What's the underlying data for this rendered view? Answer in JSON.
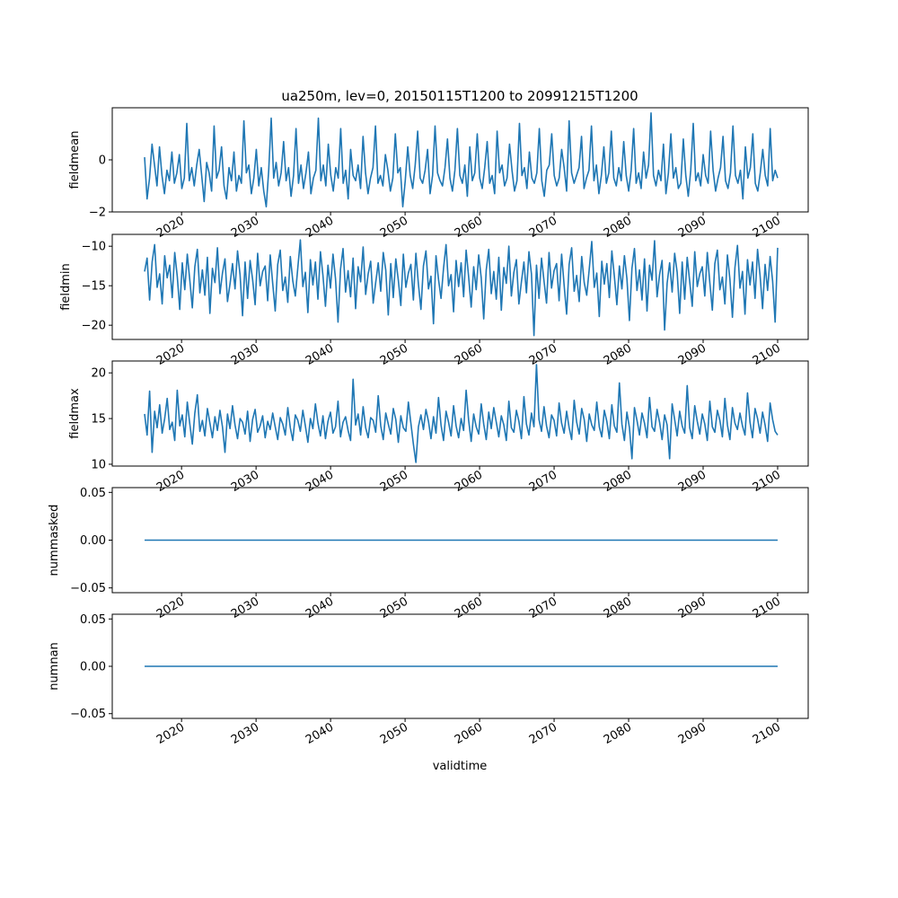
{
  "figure": {
    "title": "ua250m, lev=0, 20150115T1200 to 20991215T1200",
    "xlabel": "validtime"
  },
  "colors": {
    "line": "#1f77b4",
    "axes": "#000000",
    "background": "#ffffff"
  },
  "chart_data": [
    {
      "type": "line",
      "ylabel": "fieldmean",
      "xlim": [
        2010.7,
        2104.1
      ],
      "ylim": [
        -2.0,
        2.0
      ],
      "yticks": [
        -2,
        0
      ],
      "ytick_labels": [
        "−2",
        "0"
      ],
      "xticks": [
        2020,
        2030,
        2040,
        2050,
        2060,
        2070,
        2080,
        2090,
        2100
      ],
      "xtick_labels": [
        "2020",
        "2030",
        "2040",
        "2050",
        "2060",
        "2070",
        "2080",
        "2090",
        "2100"
      ],
      "series": [
        {
          "x_start": 2015.04,
          "x_end": 2100.0,
          "values": [
            0.1,
            -1.5,
            -0.7,
            0.6,
            -0.2,
            -1.0,
            0.5,
            -0.6,
            -1.3,
            -0.4,
            -0.8,
            0.3,
            -0.9,
            -0.5,
            0.2,
            -1.1,
            -0.7,
            1.4,
            -0.8,
            -0.3,
            -1.0,
            -0.2,
            0.4,
            -0.6,
            -1.6,
            -0.1,
            -0.5,
            -1.2,
            1.3,
            -0.7,
            -0.4,
            0.5,
            -1.0,
            -1.5,
            -0.3,
            -0.8,
            0.3,
            -1.2,
            -0.6,
            -0.9,
            1.5,
            -0.5,
            -0.2,
            -1.3,
            -0.7,
            0.4,
            -1.0,
            -0.3,
            -1.2,
            -1.8,
            -0.4,
            1.6,
            -0.7,
            -0.1,
            -1.0,
            -0.5,
            0.7,
            -0.8,
            -0.3,
            -1.4,
            -0.6,
            1.2,
            -0.9,
            -0.2,
            -1.1,
            -0.5,
            0.3,
            -1.3,
            -0.7,
            -0.4,
            1.6,
            -0.8,
            -0.2,
            -1.0,
            0.6,
            -0.6,
            -1.2,
            -0.3,
            -0.7,
            1.2,
            -0.9,
            -0.4,
            -1.5,
            0.4,
            -0.6,
            -0.8,
            -0.2,
            -1.1,
            0.9,
            -0.5,
            -1.3,
            -0.7,
            -0.3,
            1.3,
            -0.9,
            -0.6,
            -1.0,
            0.2,
            -0.4,
            -1.2,
            -0.7,
            1.0,
            -0.5,
            -0.3,
            -1.8,
            -0.8,
            0.5,
            -0.6,
            -1.1,
            -0.2,
            1.1,
            -0.7,
            -0.9,
            -0.4,
            0.4,
            -1.3,
            -0.6,
            1.3,
            -0.5,
            -0.8,
            -1.0,
            -0.3,
            0.8,
            -0.7,
            -1.2,
            -0.4,
            1.2,
            -0.6,
            -0.9,
            -0.2,
            -1.4,
            0.5,
            -0.8,
            -0.5,
            1.0,
            -0.7,
            -1.1,
            -0.3,
            0.7,
            -0.9,
            -0.6,
            -1.3,
            1.1,
            -0.5,
            -0.2,
            -1.0,
            -0.7,
            0.6,
            -0.4,
            -1.2,
            -0.8,
            1.4,
            -0.6,
            -0.3,
            -1.1,
            0.3,
            -0.7,
            -0.9,
            -0.5,
            1.2,
            -0.8,
            -1.4,
            -0.4,
            -0.2,
            1.0,
            -0.6,
            -1.0,
            -0.7,
            0.4,
            -0.3,
            -1.2,
            1.5,
            -0.5,
            -0.9,
            -0.6,
            -0.3,
            0.9,
            -1.1,
            -0.7,
            -0.4,
            1.3,
            -0.8,
            -0.2,
            -1.3,
            -0.6,
            0.5,
            -0.9,
            -0.5,
            1.1,
            -0.7,
            -1.0,
            -0.3,
            -0.8,
            0.7,
            -0.6,
            -1.2,
            -0.4,
            1.2,
            -0.9,
            -0.5,
            -1.1,
            0.3,
            -0.7,
            -0.2,
            1.8,
            -0.6,
            -1.0,
            -0.4,
            -0.8,
            0.6,
            -1.3,
            -0.5,
            1.0,
            -0.7,
            -0.3,
            -1.1,
            -0.9,
            0.8,
            -0.6,
            -1.4,
            -0.4,
            1.4,
            -0.8,
            -0.5,
            -1.0,
            0.2,
            -0.6,
            -0.9,
            1.1,
            -0.4,
            -1.2,
            -0.7,
            -0.3,
            0.9,
            -0.8,
            -1.1,
            -0.5,
            1.3,
            -0.6,
            -0.9,
            -0.4,
            -1.5,
            0.5,
            -0.7,
            -0.3,
            1.0,
            -0.9,
            -1.2,
            -0.5,
            0.4,
            -0.6,
            -1.0,
            1.2,
            -0.8,
            -0.4,
            -0.7
          ]
        }
      ]
    },
    {
      "type": "line",
      "ylabel": "fieldmin",
      "xlim": [
        2010.7,
        2104.1
      ],
      "ylim": [
        -21.8,
        -8.5
      ],
      "yticks": [
        -20,
        -15,
        -10
      ],
      "ytick_labels": [
        "−20",
        "−15",
        "−10"
      ],
      "xticks": [
        2020,
        2030,
        2040,
        2050,
        2060,
        2070,
        2080,
        2090,
        2100
      ],
      "xtick_labels": [
        "2020",
        "2030",
        "2040",
        "2050",
        "2060",
        "2070",
        "2080",
        "2090",
        "2100"
      ],
      "series": [
        {
          "x_start": 2015.04,
          "x_end": 2100.0,
          "values": [
            -13.2,
            -11.5,
            -16.8,
            -12.0,
            -9.8,
            -15.2,
            -13.5,
            -17.3,
            -11.2,
            -14.0,
            -12.4,
            -16.5,
            -10.8,
            -13.8,
            -18.0,
            -12.1,
            -15.5,
            -11.0,
            -14.3,
            -17.8,
            -12.6,
            -10.4,
            -15.9,
            -13.0,
            -16.2,
            -11.4,
            -18.5,
            -12.8,
            -14.6,
            -10.2,
            -16.0,
            -13.4,
            -11.6,
            -17.0,
            -14.8,
            -12.2,
            -15.4,
            -10.6,
            -13.6,
            -18.8,
            -12.0,
            -16.6,
            -11.8,
            -14.2,
            -17.4,
            -10.9,
            -15.0,
            -13.2,
            -12.5,
            -16.9,
            -11.1,
            -14.7,
            -18.2,
            -12.3,
            -10.5,
            -15.6,
            -13.9,
            -17.1,
            -11.3,
            -14.4,
            -16.3,
            -12.7,
            -9.2,
            -15.1,
            -13.3,
            -18.4,
            -11.7,
            -14.9,
            -12.0,
            -16.7,
            -10.7,
            -13.7,
            -17.6,
            -12.4,
            -15.3,
            -11.0,
            -14.1,
            -19.6,
            -12.9,
            -10.3,
            -15.8,
            -13.1,
            -16.4,
            -11.5,
            -17.9,
            -12.6,
            -14.5,
            -10.1,
            -16.1,
            -13.5,
            -11.9,
            -17.2,
            -14.6,
            -12.1,
            -15.7,
            -10.8,
            -13.0,
            -18.7,
            -12.2,
            -16.5,
            -11.6,
            -14.3,
            -17.5,
            -11.0,
            -15.2,
            -13.4,
            -12.3,
            -16.8,
            -10.9,
            -14.8,
            -18.0,
            -12.5,
            -10.6,
            -15.4,
            -13.8,
            -19.8,
            -11.2,
            -14.2,
            -16.6,
            -12.8,
            -9.8,
            -15.0,
            -13.6,
            -18.3,
            -11.8,
            -15.1,
            -12.1,
            -16.4,
            -10.5,
            -13.9,
            -17.7,
            -12.6,
            -15.5,
            -11.1,
            -14.0,
            -19.2,
            -13.0,
            -10.4,
            -16.0,
            -13.2,
            -16.7,
            -11.4,
            -18.1,
            -12.7,
            -14.7,
            -10.0,
            -16.3,
            -13.3,
            -11.7,
            -17.3,
            -14.5,
            -12.0,
            -15.9,
            -10.7,
            -13.5,
            -21.3,
            -12.4,
            -16.6,
            -11.5,
            -14.4,
            -17.2,
            -10.8,
            -15.3,
            -13.1,
            -12.2,
            -16.9,
            -11.0,
            -14.9,
            -18.6,
            -12.3,
            -10.2,
            -15.7,
            -13.7,
            -17.0,
            -11.3,
            -14.6,
            -16.2,
            -12.9,
            -9.4,
            -15.2,
            -13.4,
            -18.9,
            -11.9,
            -14.8,
            -12.2,
            -16.5,
            -10.6,
            -13.8,
            -17.4,
            -12.5,
            -15.4,
            -11.2,
            -14.1,
            -19.4,
            -12.8,
            -10.3,
            -15.6,
            -13.0,
            -16.8,
            -11.6,
            -18.2,
            -12.4,
            -14.3,
            -9.3,
            -16.4,
            -13.6,
            -11.8,
            -20.6,
            -14.7,
            -12.1,
            -15.8,
            -10.9,
            -13.3,
            -18.5,
            -12.0,
            -16.7,
            -11.4,
            -14.5,
            -17.6,
            -10.7,
            -15.1,
            -13.5,
            -12.6,
            -16.3,
            -10.8,
            -14.6,
            -18.1,
            -12.2,
            -10.5,
            -15.5,
            -13.9,
            -17.3,
            -11.1,
            -14.2,
            -19.0,
            -12.7,
            -9.9,
            -15.3,
            -13.2,
            -18.6,
            -11.7,
            -14.9,
            -12.0,
            -16.6,
            -10.4,
            -13.7,
            -17.9,
            -12.3,
            -15.6,
            -11.3,
            -14.4,
            -19.6,
            -10.2
          ]
        }
      ]
    },
    {
      "type": "line",
      "ylabel": "fieldmax",
      "xlim": [
        2010.7,
        2104.1
      ],
      "ylim": [
        9.8,
        21.3
      ],
      "yticks": [
        10,
        15,
        20
      ],
      "ytick_labels": [
        "10",
        "15",
        "20"
      ],
      "xticks": [
        2020,
        2030,
        2040,
        2050,
        2060,
        2070,
        2080,
        2090,
        2100
      ],
      "xtick_labels": [
        "2020",
        "2030",
        "2040",
        "2050",
        "2060",
        "2070",
        "2080",
        "2090",
        "2100"
      ],
      "series": [
        {
          "x_start": 2015.04,
          "x_end": 2100.0,
          "values": [
            15.5,
            13.2,
            18.0,
            11.3,
            15.8,
            14.0,
            16.5,
            13.4,
            15.0,
            17.2,
            13.8,
            14.6,
            12.6,
            18.1,
            14.2,
            15.4,
            13.0,
            16.8,
            14.4,
            12.2,
            15.6,
            17.6,
            13.6,
            14.8,
            13.1,
            16.1,
            14.5,
            12.9,
            15.2,
            13.7,
            15.9,
            14.1,
            11.3,
            15.5,
            13.9,
            16.4,
            14.3,
            12.8,
            15.0,
            14.6,
            13.3,
            15.8,
            12.5,
            14.9,
            16.0,
            13.5,
            14.2,
            15.3,
            12.9,
            14.7,
            13.8,
            15.6,
            14.1,
            12.7,
            15.1,
            14.4,
            13.2,
            16.2,
            14.0,
            12.6,
            15.4,
            14.8,
            13.6,
            15.9,
            14.2,
            12.4,
            15.0,
            13.9,
            16.6,
            14.5,
            13.1,
            15.3,
            12.8,
            14.7,
            15.7,
            13.4,
            14.1,
            16.9,
            13.0,
            14.6,
            15.2,
            13.7,
            12.6,
            19.3,
            14.3,
            15.5,
            13.2,
            16.3,
            14.0,
            12.9,
            15.1,
            14.8,
            13.5,
            17.5,
            14.2,
            12.7,
            15.6,
            14.4,
            13.3,
            16.1,
            14.9,
            12.4,
            15.3,
            14.0,
            13.6,
            16.8,
            14.5,
            12.2,
            10.2,
            14.1,
            15.4,
            13.8,
            16.0,
            14.7,
            12.8,
            15.2,
            13.4,
            17.3,
            14.3,
            12.6,
            15.8,
            14.6,
            13.1,
            16.4,
            14.2,
            12.9,
            15.0,
            13.7,
            18.1,
            14.8,
            12.5,
            15.5,
            14.1,
            13.3,
            16.6,
            14.4,
            12.7,
            15.7,
            13.9,
            16.2,
            14.6,
            13.0,
            15.3,
            14.3,
            12.6,
            16.9,
            14.0,
            13.5,
            15.9,
            14.7,
            12.8,
            17.4,
            14.4,
            13.2,
            15.6,
            14.1,
            20.9,
            14.9,
            13.6,
            16.3,
            14.2,
            12.9,
            15.4,
            14.8,
            13.1,
            16.7,
            14.5,
            13.4,
            15.8,
            14.0,
            12.7,
            17.0,
            14.6,
            13.3,
            16.1,
            14.9,
            12.5,
            15.5,
            14.3,
            13.7,
            16.8,
            14.1,
            13.0,
            15.9,
            14.7,
            12.8,
            16.5,
            14.2,
            13.5,
            18.9,
            14.4,
            12.6,
            15.7,
            14.0,
            10.6,
            16.2,
            14.8,
            13.2,
            15.6,
            14.5,
            12.9,
            17.3,
            14.1,
            13.6,
            16.0,
            14.6,
            12.7,
            15.4,
            14.3,
            10.6,
            16.6,
            14.9,
            13.1,
            15.8,
            14.2,
            13.4,
            18.6,
            14.0,
            12.8,
            16.4,
            14.7,
            13.3,
            15.5,
            14.4,
            12.6,
            16.9,
            14.1,
            13.5,
            15.9,
            14.8,
            13.0,
            17.2,
            14.3,
            12.7,
            16.2,
            14.5,
            13.8,
            15.6,
            14.2,
            13.2,
            17.8,
            14.6,
            12.9,
            16.1,
            15.0,
            13.4,
            15.7,
            14.3,
            12.5,
            16.7,
            14.9,
            13.6,
            13.2
          ]
        }
      ]
    },
    {
      "type": "line",
      "ylabel": "nummasked",
      "xlim": [
        2010.7,
        2104.1
      ],
      "ylim": [
        -0.055,
        0.055
      ],
      "yticks": [
        -0.05,
        0.0,
        0.05
      ],
      "ytick_labels": [
        "−0.05",
        "0.00",
        "0.05"
      ],
      "xticks": [
        2020,
        2030,
        2040,
        2050,
        2060,
        2070,
        2080,
        2090,
        2100
      ],
      "xtick_labels": [
        "2020",
        "2030",
        "2040",
        "2050",
        "2060",
        "2070",
        "2080",
        "2090",
        "2100"
      ],
      "series": [
        {
          "x_start": 2015.04,
          "x_end": 2100.0,
          "values": [
            0,
            0
          ]
        }
      ]
    },
    {
      "type": "line",
      "ylabel": "numnan",
      "xlim": [
        2010.7,
        2104.1
      ],
      "ylim": [
        -0.055,
        0.055
      ],
      "yticks": [
        -0.05,
        0.0,
        0.05
      ],
      "ytick_labels": [
        "−0.05",
        "0.00",
        "0.05"
      ],
      "xticks": [
        2020,
        2030,
        2040,
        2050,
        2060,
        2070,
        2080,
        2090,
        2100
      ],
      "xtick_labels": [
        "2020",
        "2030",
        "2040",
        "2050",
        "2060",
        "2070",
        "2080",
        "2090",
        "2100"
      ],
      "series": [
        {
          "x_start": 2015.04,
          "x_end": 2100.0,
          "values": [
            0,
            0
          ]
        }
      ]
    }
  ]
}
